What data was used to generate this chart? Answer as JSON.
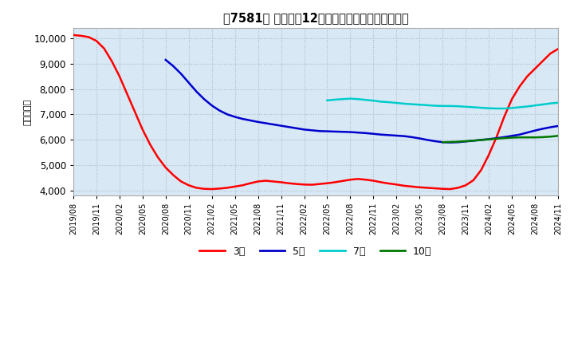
{
  "title": "　7581、　経常利益12か月移動合計の平均値の推移",
  "ylabel": "（百万円）",
  "ylim": [
    3800,
    10400
  ],
  "yticks": [
    4000,
    5000,
    6000,
    7000,
    8000,
    9000,
    10000
  ],
  "background_color": "#d8e8f5",
  "grid_color": "#aabbcc",
  "xtick_labels": [
    "2019/08",
    "2019/11",
    "2020/02",
    "2020/05",
    "2020/08",
    "2020/11",
    "2021/02",
    "2021/05",
    "2021/08",
    "2021/11",
    "2022/02",
    "2022/05",
    "2022/08",
    "2022/11",
    "2023/02",
    "2023/05",
    "2023/08",
    "2023/11",
    "2024/02",
    "2024/05",
    "2024/08",
    "2024/11"
  ],
  "xtick_positions": [
    0,
    3,
    6,
    9,
    12,
    15,
    18,
    21,
    24,
    27,
    30,
    33,
    36,
    39,
    42,
    45,
    48,
    51,
    54,
    57,
    60,
    63
  ],
  "legend_labels": [
    "3年",
    "5年",
    "7年",
    "10年"
  ],
  "legend_colors": [
    "#ff0000",
    "#0000cc",
    "#00cccc",
    "#007700"
  ],
  "series": {
    "3年": {
      "color": "#ff0000",
      "x": [
        0,
        1,
        2,
        3,
        4,
        5,
        6,
        7,
        8,
        9,
        10,
        11,
        12,
        13,
        14,
        15,
        16,
        17,
        18,
        19,
        20,
        21,
        22,
        23,
        24,
        25,
        26,
        27,
        28,
        29,
        30,
        31,
        32,
        33,
        34,
        35,
        36,
        37,
        38,
        39,
        40,
        41,
        42,
        43,
        44,
        45,
        46,
        47,
        48,
        49,
        50,
        51,
        52,
        53,
        54,
        55,
        56,
        57,
        58,
        59,
        60,
        61,
        62,
        63
      ],
      "y": [
        10130,
        10100,
        10050,
        9900,
        9600,
        9100,
        8500,
        7800,
        7100,
        6400,
        5800,
        5300,
        4900,
        4600,
        4350,
        4200,
        4100,
        4060,
        4050,
        4070,
        4100,
        4150,
        4200,
        4280,
        4350,
        4380,
        4350,
        4320,
        4280,
        4250,
        4230,
        4220,
        4250,
        4280,
        4320,
        4370,
        4420,
        4450,
        4420,
        4380,
        4320,
        4270,
        4230,
        4180,
        4150,
        4120,
        4100,
        4080,
        4060,
        4050,
        4100,
        4200,
        4400,
        4800,
        5400,
        6100,
        6900,
        7600,
        8100,
        8500,
        8800,
        9100,
        9400,
        9580
      ]
    },
    "5年": {
      "color": "#0000cc",
      "x": [
        12,
        13,
        14,
        15,
        16,
        17,
        18,
        19,
        20,
        21,
        22,
        23,
        24,
        25,
        26,
        27,
        28,
        29,
        30,
        31,
        32,
        33,
        34,
        35,
        36,
        37,
        38,
        39,
        40,
        41,
        42,
        43,
        44,
        45,
        46,
        47,
        48,
        49,
        50,
        51,
        52,
        53,
        54,
        55,
        56,
        57,
        58,
        59,
        60,
        61,
        62,
        63
      ],
      "y": [
        9150,
        8900,
        8600,
        8250,
        7900,
        7600,
        7350,
        7150,
        7000,
        6900,
        6820,
        6760,
        6700,
        6650,
        6600,
        6550,
        6500,
        6450,
        6400,
        6370,
        6340,
        6330,
        6320,
        6310,
        6300,
        6280,
        6260,
        6230,
        6200,
        6180,
        6160,
        6140,
        6100,
        6050,
        5990,
        5940,
        5900,
        5890,
        5900,
        5930,
        5960,
        5990,
        6020,
        6060,
        6100,
        6150,
        6200,
        6280,
        6360,
        6430,
        6490,
        6540
      ]
    },
    "7年": {
      "color": "#00cccc",
      "x": [
        33,
        34,
        35,
        36,
        37,
        38,
        39,
        40,
        41,
        42,
        43,
        44,
        45,
        46,
        47,
        48,
        49,
        50,
        51,
        52,
        53,
        54,
        55,
        56,
        57,
        58,
        59,
        60,
        61,
        62,
        63
      ],
      "y": [
        7550,
        7580,
        7600,
        7620,
        7600,
        7570,
        7540,
        7500,
        7480,
        7450,
        7420,
        7400,
        7380,
        7360,
        7340,
        7330,
        7330,
        7320,
        7300,
        7280,
        7260,
        7240,
        7230,
        7230,
        7250,
        7280,
        7310,
        7350,
        7390,
        7430,
        7460
      ]
    },
    "10年": {
      "color": "#007700",
      "x": [
        48,
        49,
        50,
        51,
        52,
        53,
        54,
        55,
        56,
        57,
        58,
        59,
        60,
        61,
        62,
        63
      ],
      "y": [
        5900,
        5910,
        5920,
        5940,
        5960,
        5990,
        6010,
        6040,
        6060,
        6080,
        6090,
        6090,
        6090,
        6100,
        6120,
        6150
      ]
    }
  }
}
